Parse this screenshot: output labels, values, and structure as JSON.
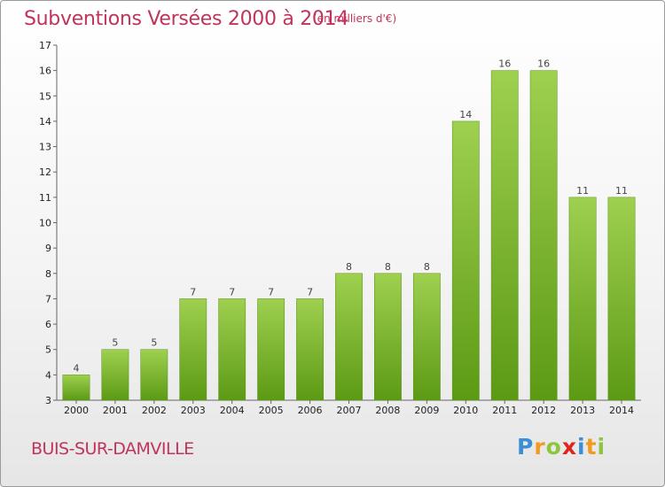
{
  "header": {
    "title": "Subventions Versées 2000 à 2014",
    "subtitle": "(en milliers d'€)"
  },
  "footer": {
    "commune": "BUIS-SUR-DAMVILLE",
    "logo_letters": [
      {
        "char": "P",
        "color": "#3a8fd8"
      },
      {
        "char": "r",
        "color": "#f29a1f"
      },
      {
        "char": "o",
        "color": "#8cc63f"
      },
      {
        "char": "x",
        "color": "#e2231a"
      },
      {
        "char": "i",
        "color": "#3a8fd8"
      },
      {
        "char": "t",
        "color": "#f29a1f"
      },
      {
        "char": "i",
        "color": "#8cc63f"
      }
    ]
  },
  "chart_data": {
    "type": "bar",
    "title": "Subventions Versées 2000 à 2014",
    "subtitle": "(en milliers d'€)",
    "categories": [
      "2000",
      "2001",
      "2002",
      "2003",
      "2004",
      "2005",
      "2006",
      "2007",
      "2008",
      "2009",
      "2010",
      "2011",
      "2012",
      "2013",
      "2014"
    ],
    "values": [
      4,
      5,
      5,
      7,
      7,
      7,
      7,
      8,
      8,
      8,
      14,
      16,
      16,
      11,
      11
    ],
    "ylim": [
      3,
      17
    ],
    "yticks": [
      3,
      4,
      5,
      6,
      7,
      8,
      9,
      10,
      11,
      12,
      13,
      14,
      15,
      16,
      17
    ],
    "grid": false,
    "bar_color_top": "#9fd050",
    "bar_color_bottom": "#5c9a14",
    "value_labels": true
  }
}
